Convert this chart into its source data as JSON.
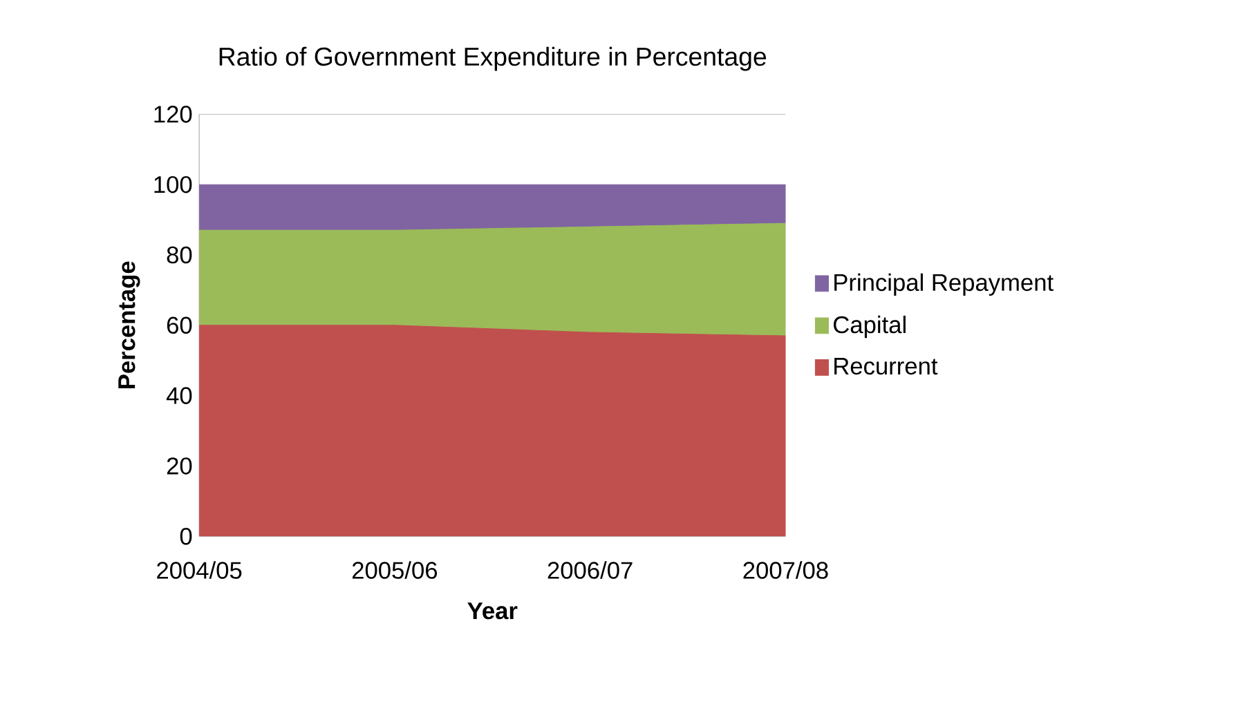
{
  "chart_data": {
    "type": "area",
    "stacked": true,
    "title": "Ratio of Government Expenditure in Percentage",
    "xlabel": "Year",
    "ylabel": "Percentage",
    "categories": [
      "2004/05",
      "2005/06",
      "2006/07",
      "2007/08"
    ],
    "series": [
      {
        "name": "Recurrent",
        "color": "#c0504d",
        "values": [
          60,
          60,
          58,
          57
        ]
      },
      {
        "name": "Capital",
        "color": "#9bbb59",
        "values": [
          27,
          27,
          30,
          32
        ]
      },
      {
        "name": "Principal Repayment",
        "color": "#8064a2",
        "values": [
          13,
          13,
          12,
          11
        ]
      }
    ],
    "ylim": [
      0,
      120
    ],
    "yticks": [
      0,
      20,
      40,
      60,
      80,
      100,
      120
    ],
    "grid": false,
    "legend": "right"
  }
}
